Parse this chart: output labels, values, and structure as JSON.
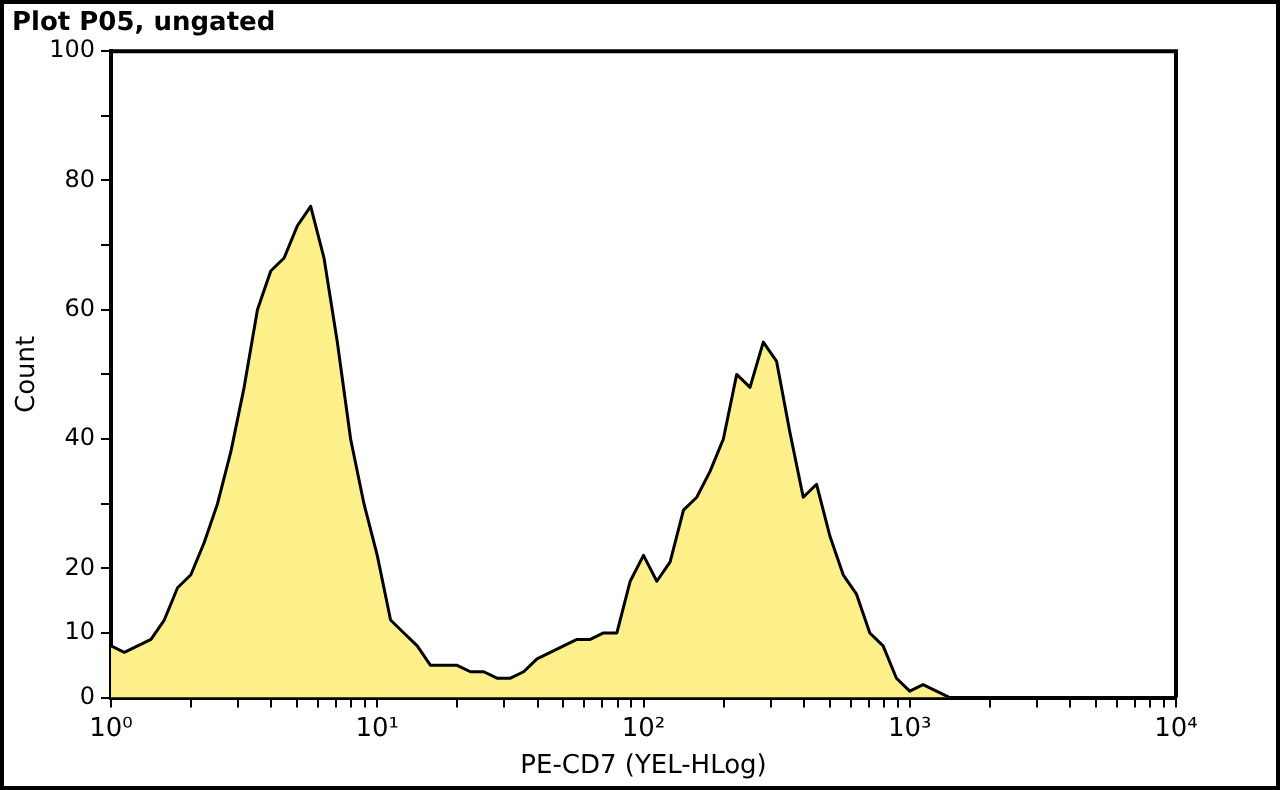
{
  "chart_data": {
    "type": "area",
    "title": "Plot P05, ungated",
    "xlabel": "PE-CD7 (YEL-HLog)",
    "ylabel": "Count",
    "log": "x",
    "grid": false,
    "color": "#fdf08a",
    "x": [
      1,
      1.122,
      1.259,
      1.413,
      1.585,
      1.778,
      1.995,
      2.239,
      2.512,
      2.818,
      3.162,
      3.548,
      3.981,
      4.467,
      5.012,
      5.623,
      6.31,
      7.079,
      7.943,
      8.913,
      10,
      11.22,
      12.59,
      14.13,
      15.85,
      17.78,
      19.95,
      22.39,
      25.12,
      28.18,
      31.62,
      35.48,
      39.81,
      44.67,
      50.12,
      56.23,
      63.1,
      70.79,
      79.43,
      89.13,
      100,
      112.2,
      125.9,
      141.3,
      158.5,
      177.8,
      199.5,
      223.9,
      251.2,
      281.8,
      316.2,
      354.8,
      398.1,
      446.7,
      501.2,
      562.3,
      631,
      707.9,
      794.3,
      891.3,
      1000,
      1122,
      1259,
      1413,
      1585,
      10000
    ],
    "values": [
      8,
      7,
      8,
      9,
      12,
      17,
      19,
      24,
      30,
      38,
      48,
      60,
      66,
      68,
      73,
      76,
      68,
      55,
      40,
      30,
      22,
      12,
      10,
      8,
      5,
      5,
      5,
      4,
      4,
      3,
      3,
      4,
      6,
      7,
      8,
      9,
      9,
      10,
      10,
      18,
      22,
      18,
      21,
      29,
      31,
      35,
      40,
      50,
      48,
      55,
      52,
      41,
      31,
      33,
      25,
      19,
      16,
      10,
      8,
      3,
      1,
      2,
      1,
      0,
      0,
      0
    ],
    "xlim": [
      1,
      10000
    ],
    "xticks": [
      {
        "value": 1,
        "label": "10⁰"
      },
      {
        "value": 2,
        "label": null
      },
      {
        "value": 3,
        "label": null
      },
      {
        "value": 4,
        "label": null
      },
      {
        "value": 5,
        "label": null
      },
      {
        "value": 6,
        "label": null
      },
      {
        "value": 7,
        "label": null
      },
      {
        "value": 8,
        "label": null
      },
      {
        "value": 9,
        "label": null
      },
      {
        "value": 10,
        "label": "10¹"
      },
      {
        "value": 20,
        "label": null
      },
      {
        "value": 30,
        "label": null
      },
      {
        "value": 40,
        "label": null
      },
      {
        "value": 50,
        "label": null
      },
      {
        "value": 60,
        "label": null
      },
      {
        "value": 70,
        "label": null
      },
      {
        "value": 80,
        "label": null
      },
      {
        "value": 90,
        "label": null
      },
      {
        "value": 100,
        "label": "10²"
      },
      {
        "value": 200,
        "label": null
      },
      {
        "value": 300,
        "label": null
      },
      {
        "value": 400,
        "label": null
      },
      {
        "value": 500,
        "label": null
      },
      {
        "value": 600,
        "label": null
      },
      {
        "value": 700,
        "label": null
      },
      {
        "value": 800,
        "label": null
      },
      {
        "value": 900,
        "label": null
      },
      {
        "value": 1000,
        "label": "10³"
      },
      {
        "value": 2000,
        "label": null
      },
      {
        "value": 3000,
        "label": null
      },
      {
        "value": 4000,
        "label": null
      },
      {
        "value": 5000,
        "label": null
      },
      {
        "value": 6000,
        "label": null
      },
      {
        "value": 7000,
        "label": null
      },
      {
        "value": 8000,
        "label": null
      },
      {
        "value": 9000,
        "label": null
      },
      {
        "value": 10000,
        "label": "10⁴"
      }
    ],
    "ylim": [
      0,
      100
    ],
    "yticks": [
      0,
      10,
      20,
      {
        "value": 30,
        "label": null
      },
      40,
      {
        "value": 50,
        "label": null
      },
      60,
      {
        "value": 70,
        "label": null
      },
      80,
      {
        "value": 90,
        "label": null
      },
      100
    ]
  }
}
